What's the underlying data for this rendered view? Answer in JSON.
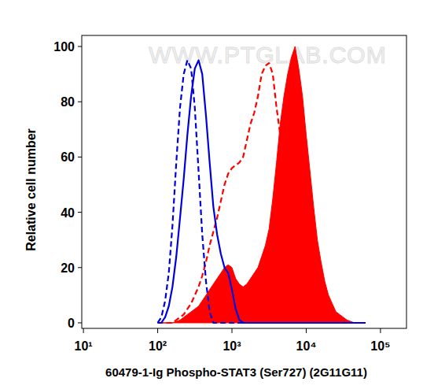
{
  "chart_data": {
    "type": "area",
    "watermark": "WWW.PTGLAB.COM",
    "x_label": "60479-1-Ig Phospho-STAT3 (Ser727) (2G11G11)",
    "y_label": "Relative cell number",
    "log": "x",
    "grid": false,
    "xlim": [
      9.5,
      224000
    ],
    "xticks": [
      {
        "value": 10,
        "label": "10¹"
      },
      {
        "value": 100,
        "label": "10²"
      },
      {
        "value": 1000,
        "label": "10³"
      },
      {
        "value": 10000,
        "label": "10⁴"
      },
      {
        "value": 100000,
        "label": "10⁵"
      }
    ],
    "ylim": [
      -2,
      104
    ],
    "yticks": [
      0,
      20,
      40,
      60,
      80,
      100
    ],
    "x": [
      100,
      112,
      126,
      141,
      158,
      178,
      200,
      224,
      251,
      282,
      316,
      355,
      398,
      447,
      501,
      562,
      631,
      708,
      794,
      891,
      1000,
      1122,
      1259,
      1413,
      1585,
      1778,
      1995,
      2239,
      2512,
      2818,
      3162,
      3548,
      3981,
      4467,
      5012,
      5623,
      6310,
      7079,
      7943,
      8913,
      10000,
      11220,
      12589,
      14125,
      15849,
      17783,
      19953,
      22387,
      25119,
      28184,
      31623,
      35481,
      39811,
      44668,
      50119,
      56234,
      63096
    ],
    "series": [
      {
        "type": "area",
        "color": "#ff0000",
        "line_style": "solid",
        "values": [
          0,
          0,
          0,
          0,
          0,
          0.5,
          1,
          2,
          3,
          4,
          5,
          6,
          8,
          10,
          12,
          14,
          16,
          18,
          20,
          21,
          20,
          16,
          14,
          13,
          14,
          16,
          18,
          20,
          24,
          28,
          34,
          45,
          58,
          72,
          82,
          90,
          96,
          100,
          92,
          82,
          68,
          55,
          42,
          30,
          22,
          15,
          10,
          7,
          4,
          3,
          2,
          1,
          0.5,
          0,
          0,
          0,
          0
        ]
      },
      {
        "type": "line",
        "color": "#ff0000",
        "line_style": "dashed",
        "values": [
          0,
          0,
          0,
          0,
          0,
          1,
          2,
          3,
          5,
          7,
          10,
          13,
          17,
          22,
          28,
          33,
          38,
          44,
          50,
          54,
          56,
          57,
          58,
          60,
          66,
          72,
          76,
          82,
          90,
          93,
          94,
          90,
          78,
          68,
          75,
          85,
          88,
          82,
          72,
          60,
          48,
          36,
          25,
          17,
          11,
          7,
          4,
          2,
          1,
          0,
          0,
          0,
          0,
          0,
          0,
          0,
          0
        ]
      },
      {
        "type": "line",
        "color": "#0000dd",
        "line_style": "solid",
        "values": [
          0,
          0,
          2,
          6,
          13,
          24,
          38,
          52,
          68,
          82,
          92,
          95,
          90,
          75,
          58,
          42,
          32,
          25,
          20,
          18,
          12,
          5,
          1,
          0,
          0,
          0,
          0,
          0,
          0,
          0,
          0,
          0,
          0,
          0,
          0,
          0,
          0,
          0,
          0,
          0,
          0,
          0,
          0,
          0,
          0,
          0,
          0,
          0,
          0,
          0,
          0,
          0,
          0,
          0,
          0,
          0,
          0
        ]
      },
      {
        "type": "line",
        "color": "#0000dd",
        "line_style": "dashed",
        "values": [
          0,
          2,
          8,
          18,
          35,
          58,
          78,
          90,
          95,
          92,
          78,
          55,
          32,
          15,
          4,
          0,
          0,
          0,
          0,
          0,
          0,
          0,
          0,
          0,
          0,
          0,
          0,
          0,
          0,
          0,
          0,
          0,
          0,
          0,
          0,
          0,
          0,
          0,
          0,
          0,
          0,
          0,
          0,
          0,
          0,
          0,
          0,
          0,
          0,
          0,
          0,
          0,
          0,
          0,
          0,
          0,
          0
        ]
      }
    ]
  }
}
